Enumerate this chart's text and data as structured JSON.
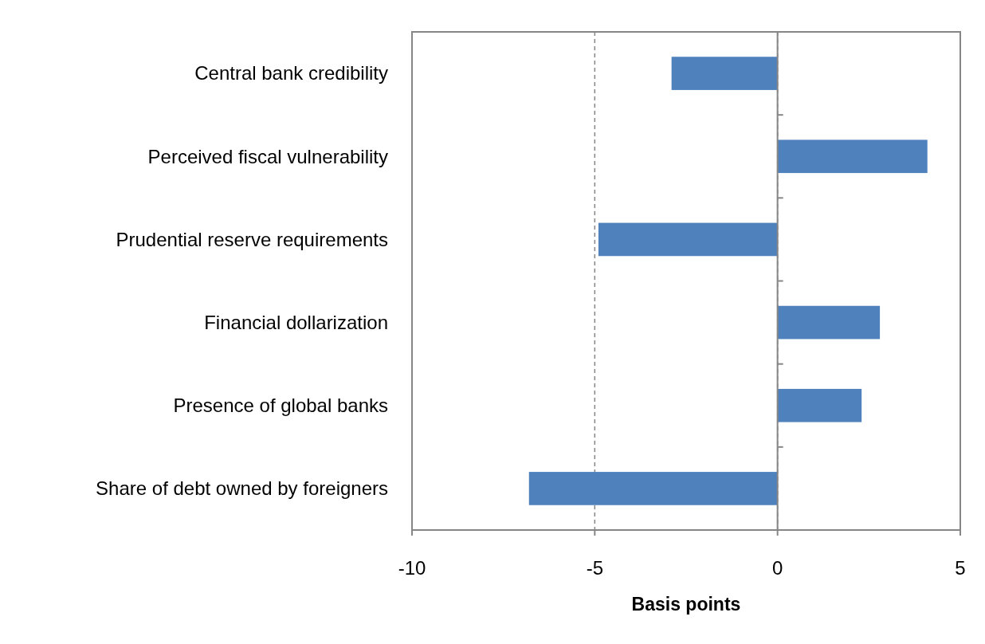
{
  "chart_data": {
    "type": "bar",
    "orientation": "horizontal",
    "categories": [
      "Central bank credibility",
      "Perceived fiscal vulnerability",
      "Prudential reserve requirements",
      "Financial dollarization",
      "Presence of global banks",
      "Share of debt owned by foreigners"
    ],
    "values": [
      -2.9,
      4.1,
      -4.9,
      2.8,
      2.3,
      -6.8
    ],
    "color": "#4f81bd",
    "xlim": [
      -10,
      5
    ],
    "xticks": [
      -10,
      -5,
      0,
      5
    ],
    "xlabel": "Basis points",
    "grid": "x",
    "line_style": "dashed"
  }
}
